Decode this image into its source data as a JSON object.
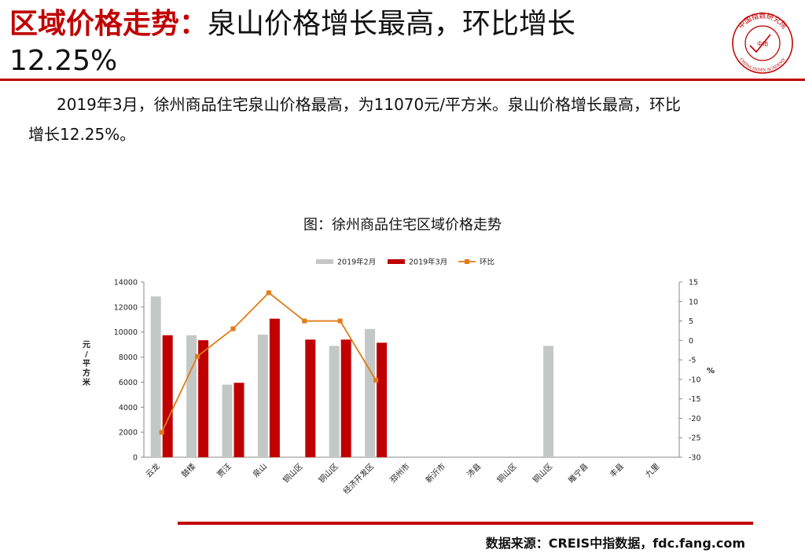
{
  "header": {
    "title_highlight": "区域价格走势：",
    "title_rest": "泉山价格增长最高，环比增长",
    "title_line2": "12.25%"
  },
  "logo": {
    "top_text": "中国指数研究院",
    "center_text": "中指",
    "bottom_text": "CHINA INDEX ACADEMY",
    "color": "#c00000"
  },
  "body": {
    "line1": "2019年3月，徐州商品住宅泉山价格最高，为11070元/平方米。泉山价格增长最高，环比",
    "line2": "增长12.25%。"
  },
  "chart_title": "图：徐州商品住宅区域价格走势",
  "footer": {
    "source": "数据来源：CREIS中指数据，fdc.fang.com"
  },
  "chart_data": {
    "type": "bar",
    "categories": [
      "云龙",
      "鼓楼",
      "贾汪",
      "泉山",
      "铜山区",
      "铜山区",
      "经济开发区",
      "邳州市",
      "新沂市",
      "沛县",
      "铜山区",
      "铜山区",
      "睢宁县",
      "丰县",
      "九里"
    ],
    "series": [
      {
        "name": "2019年2月",
        "type": "bar",
        "axis": "left",
        "color": "#c3c8c6",
        "values": [
          12850,
          9750,
          5800,
          9800,
          null,
          8900,
          10250,
          null,
          null,
          null,
          null,
          8900,
          null,
          null,
          null
        ]
      },
      {
        "name": "2019年3月",
        "type": "bar",
        "axis": "left",
        "color": "#c00000",
        "values": [
          9750,
          9350,
          5950,
          11070,
          9400,
          9400,
          9150,
          null,
          null,
          null,
          null,
          null,
          null,
          null,
          null
        ]
      },
      {
        "name": "环比",
        "type": "line",
        "axis": "right",
        "color": "#e07b1a",
        "values": [
          -23.6,
          -4.1,
          3,
          12.25,
          5,
          5,
          -10.2,
          null,
          null,
          null,
          null,
          null,
          null,
          null,
          null
        ]
      }
    ],
    "ylabel": "元/平方米",
    "y2label": "%",
    "ylim": [
      0,
      14000
    ],
    "yticks": [
      0,
      2000,
      4000,
      6000,
      8000,
      10000,
      12000,
      14000
    ],
    "y2lim": [
      -30,
      15
    ],
    "y2ticks": [
      15,
      10,
      5,
      0,
      -5,
      -10,
      -15,
      -20,
      -25,
      -30
    ],
    "legend": "top",
    "grid": false
  }
}
